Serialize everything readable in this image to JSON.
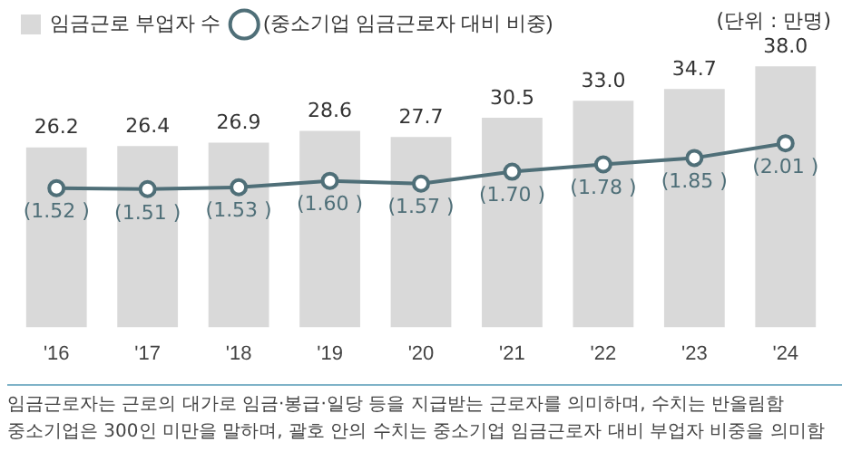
{
  "chart_data": {
    "type": "bar",
    "categories": [
      "'16",
      "'17",
      "'18",
      "'19",
      "'20",
      "'21",
      "'22",
      "'23",
      "'24"
    ],
    "series": [
      {
        "name": "임금근로 부업자 수",
        "color": "#d9d9d9",
        "values": [
          26.2,
          26.4,
          26.9,
          28.6,
          27.7,
          30.5,
          33.0,
          34.7,
          38.0
        ],
        "value_labels": [
          "26.2",
          "26.4",
          "26.9",
          "28.6",
          "27.7",
          "30.5",
          "33.0",
          "34.7",
          "38.0"
        ]
      },
      {
        "name": "(중소기업 임금근로자 대비 비중)",
        "type": "line",
        "axis": "y2",
        "color": "#4f6f78",
        "values": [
          1.52,
          1.51,
          1.53,
          1.6,
          1.57,
          1.7,
          1.78,
          1.85,
          2.01
        ],
        "value_labels": [
          "(1.52 )",
          "(1.51 )",
          "(1.53 )",
          "(1.60 )",
          "(1.57 )",
          "(1.70 )",
          "(1.78 )",
          "(1.85 )",
          "(2.01 )"
        ]
      }
    ],
    "tick_labels": "x",
    "grid": false,
    "legend": "top left",
    "marker": "circle",
    "annotations": [
      "(단위 : 만명)",
      "임금근로자는 근로의 대가로 임금·봉급·일당 등을 지급받는 근로자를 의미하며, 수치는 반올림함",
      "중소기업은 300인 미만을 말하며, 괄호 안의 수치는 중소기업 임금근로자 대비 부업자 비중을 의미함"
    ]
  }
}
